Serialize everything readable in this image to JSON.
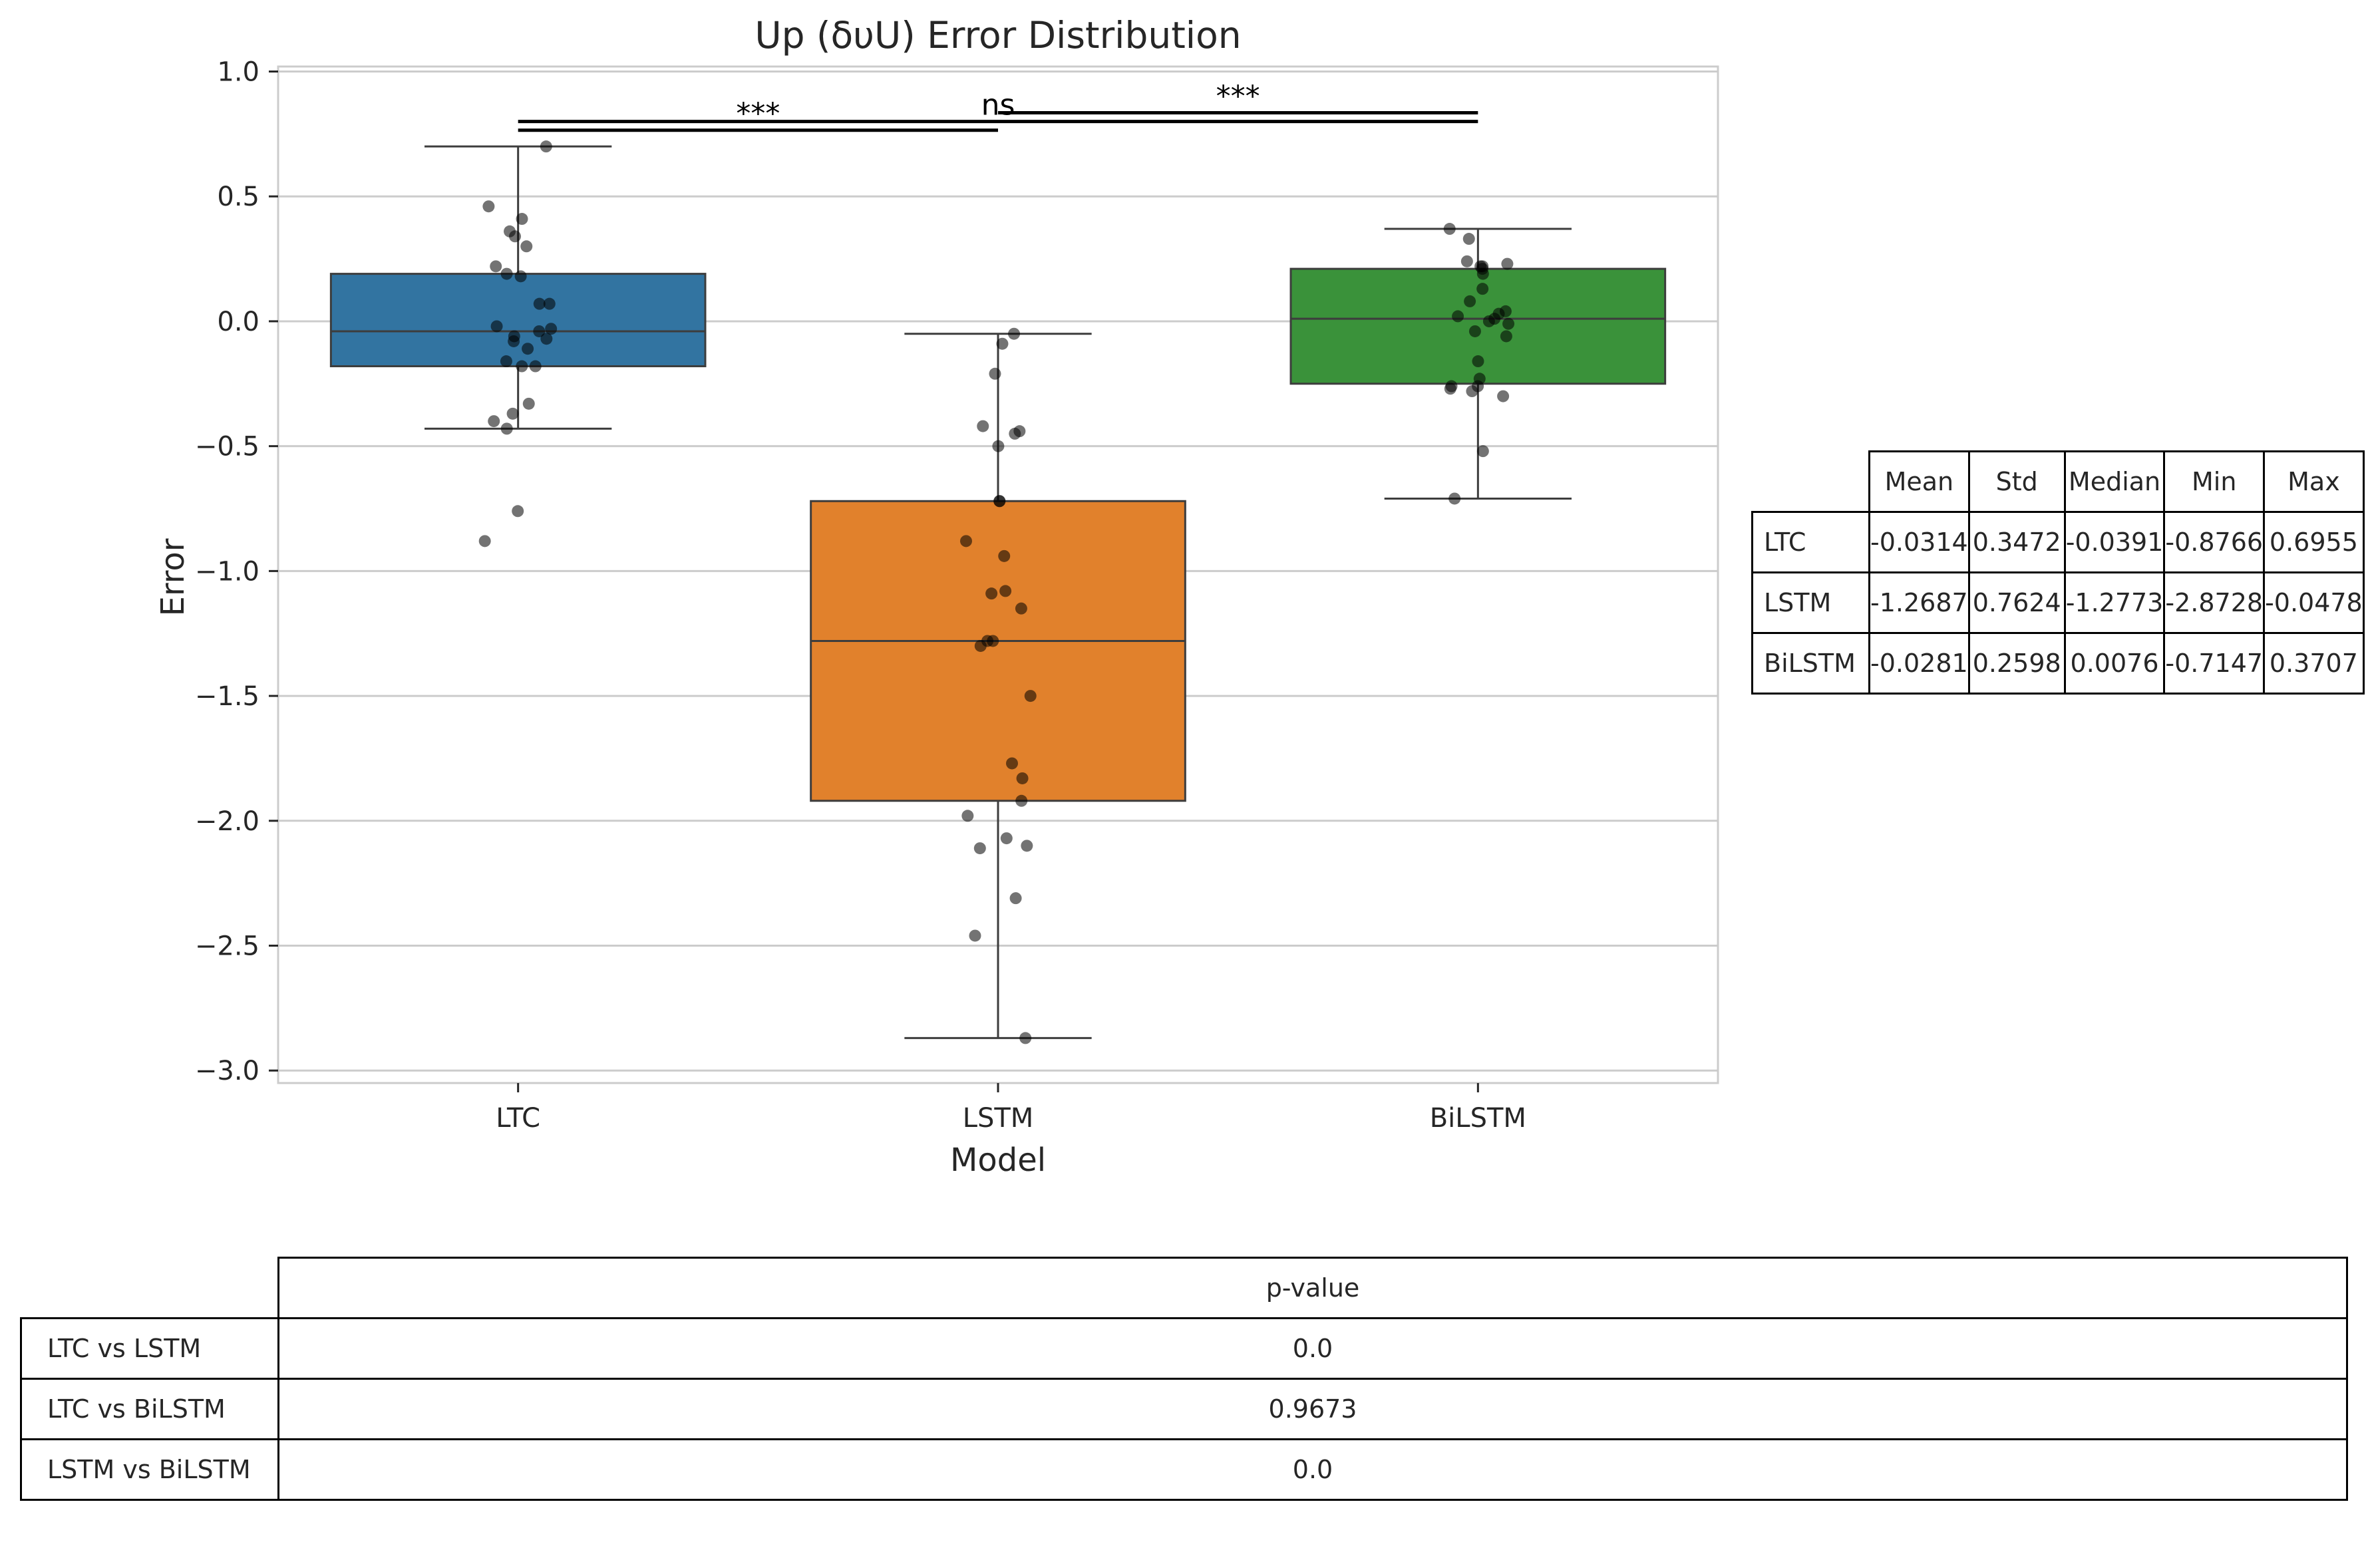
{
  "chart_data": {
    "type": "box",
    "title": "Up (δυU) Error Distribution",
    "xlabel": "Model",
    "ylabel": "Error",
    "ylim": [
      -3.05,
      1.02
    ],
    "yticks": [
      1.0,
      0.5,
      0.0,
      -0.5,
      -1.0,
      -1.5,
      -2.0,
      -2.5,
      -3.0
    ],
    "ytick_labels": [
      "1.0",
      "0.5",
      "0.0",
      "−0.5",
      "−1.0",
      "−1.5",
      "−2.0",
      "−2.5",
      "−3.0"
    ],
    "grid": true,
    "categories": [
      "LTC",
      "LSTM",
      "BiLSTM"
    ],
    "colors": [
      "#3274a1",
      "#e1812c",
      "#3a923a"
    ],
    "boxes": [
      {
        "name": "LTC",
        "q1": -0.18,
        "median": -0.04,
        "q3": 0.19,
        "whisker_low": -0.43,
        "whisker_high": 0.7,
        "points": [
          0.7,
          0.46,
          0.41,
          0.36,
          0.34,
          0.3,
          0.22,
          0.19,
          0.18,
          0.07,
          0.07,
          -0.02,
          -0.03,
          -0.04,
          -0.06,
          -0.07,
          -0.08,
          -0.11,
          -0.16,
          -0.18,
          -0.18,
          -0.33,
          -0.37,
          -0.4,
          -0.43,
          -0.76,
          -0.88
        ]
      },
      {
        "name": "LSTM",
        "q1": -1.92,
        "median": -1.28,
        "q3": -0.72,
        "whisker_low": -2.87,
        "whisker_high": -0.05,
        "points": [
          -0.05,
          -0.09,
          -0.21,
          -0.42,
          -0.44,
          -0.45,
          -0.5,
          -0.72,
          -0.72,
          -0.88,
          -0.94,
          -1.08,
          -1.09,
          -1.15,
          -1.28,
          -1.28,
          -1.3,
          -1.5,
          -1.77,
          -1.83,
          -1.92,
          -1.98,
          -2.07,
          -2.1,
          -2.11,
          -2.31,
          -2.46,
          -2.87
        ]
      },
      {
        "name": "BiLSTM",
        "q1": -0.25,
        "median": 0.01,
        "q3": 0.21,
        "whisker_low": -0.71,
        "whisker_high": 0.37,
        "points": [
          0.37,
          0.33,
          0.24,
          0.23,
          0.22,
          0.22,
          0.21,
          0.19,
          0.13,
          0.08,
          0.04,
          0.03,
          0.02,
          0.01,
          0.0,
          -0.01,
          -0.04,
          -0.06,
          -0.16,
          -0.23,
          -0.26,
          -0.26,
          -0.27,
          -0.28,
          -0.3,
          -0.52,
          -0.71
        ]
      }
    ],
    "annotations": [
      {
        "from": 0,
        "to": 1,
        "label": "***",
        "y": 0.765
      },
      {
        "from": 0,
        "to": 2,
        "label": "ns",
        "y": 0.8
      },
      {
        "from": 1,
        "to": 2,
        "label": "***",
        "y": 0.835
      }
    ]
  },
  "stats_table": {
    "columns": [
      "Mean",
      "Std",
      "Median",
      "Min",
      "Max"
    ],
    "rows": [
      {
        "label": "LTC",
        "values": [
          "-0.0314",
          "0.3472",
          "-0.0391",
          "-0.8766",
          "0.6955"
        ]
      },
      {
        "label": "LSTM",
        "values": [
          "-1.2687",
          "0.7624",
          "-1.2773",
          "-2.8728",
          "-0.0478"
        ]
      },
      {
        "label": "BiLSTM",
        "values": [
          "-0.0281",
          "0.2598",
          "0.0076",
          "-0.7147",
          "0.3707"
        ]
      }
    ]
  },
  "pvalue_table": {
    "column": "p-value",
    "rows": [
      {
        "label": "LTC vs LSTM",
        "value": "0.0"
      },
      {
        "label": "LTC vs BiLSTM",
        "value": "0.9673"
      },
      {
        "label": "LSTM vs BiLSTM",
        "value": "0.0"
      }
    ]
  }
}
